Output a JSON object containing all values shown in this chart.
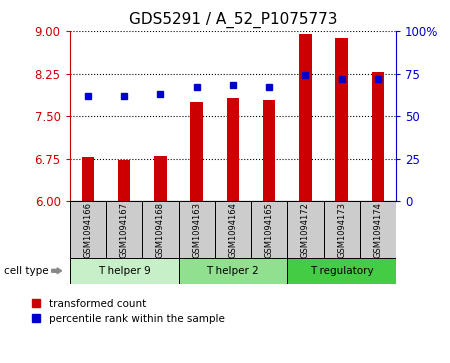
{
  "title": "GDS5291 / A_52_P1075773",
  "samples": [
    "GSM1094166",
    "GSM1094167",
    "GSM1094168",
    "GSM1094163",
    "GSM1094164",
    "GSM1094165",
    "GSM1094172",
    "GSM1094173",
    "GSM1094174"
  ],
  "bar_values": [
    6.78,
    6.73,
    6.8,
    7.75,
    7.82,
    7.78,
    8.95,
    8.88,
    8.28
  ],
  "percentile_values": [
    62,
    62,
    63,
    67,
    68,
    67,
    74,
    72,
    72
  ],
  "ylim_left": [
    6,
    9
  ],
  "ylim_right": [
    0,
    100
  ],
  "yticks_left": [
    6,
    6.75,
    7.5,
    8.25,
    9
  ],
  "yticks_right": [
    0,
    25,
    50,
    75,
    100
  ],
  "bar_color": "#cc0000",
  "dot_color": "#0000cc",
  "groups": [
    {
      "label": "T helper 9",
      "start": 0,
      "end": 3,
      "color": "#c8f0c8"
    },
    {
      "label": "T helper 2",
      "start": 3,
      "end": 6,
      "color": "#90e090"
    },
    {
      "label": "T regulatory",
      "start": 6,
      "end": 9,
      "color": "#44cc44"
    }
  ],
  "legend_bar_label": "transformed count",
  "legend_dot_label": "percentile rank within the sample",
  "cell_type_label": "cell type",
  "title_fontsize": 11,
  "axis_color_left": "#cc0000",
  "axis_color_right": "#0000cc",
  "background_color": "#ffffff",
  "plot_bg_color": "#ffffff",
  "sample_box_color": "#cccccc",
  "bar_width": 0.35
}
